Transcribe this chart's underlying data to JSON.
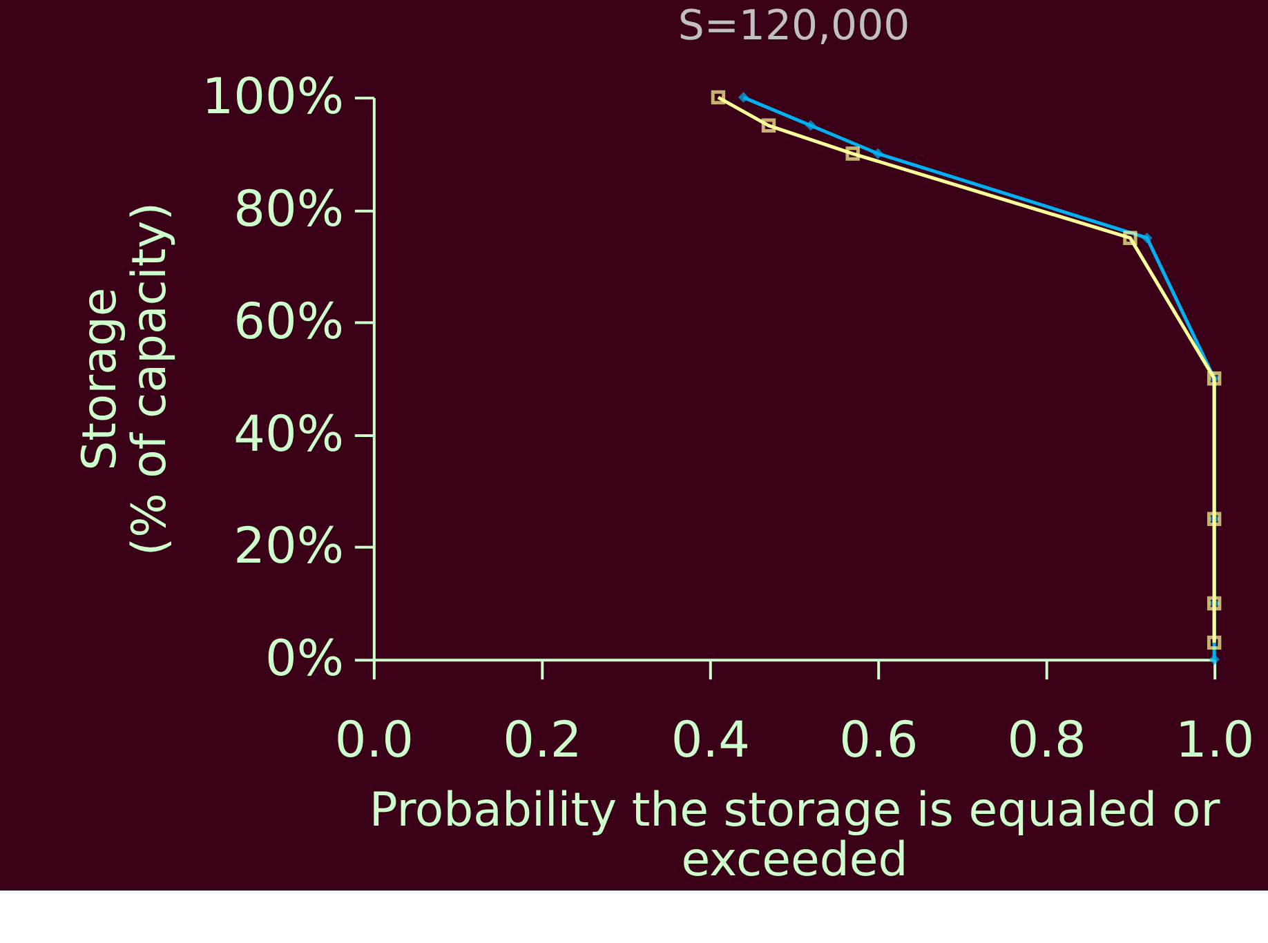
{
  "chart_data": {
    "type": "line",
    "title": "S=120,000",
    "xlabel": "Probability the storage is equaled or\nexceeded",
    "ylabel": "Storage\n(% of capacity)",
    "xlim": [
      0,
      1
    ],
    "ylim": [
      0,
      100
    ],
    "xticks": [
      {
        "value": 0,
        "label": "0.0"
      },
      {
        "value": 0.2,
        "label": "0.2"
      },
      {
        "value": 0.4,
        "label": "0.4"
      },
      {
        "value": 0.6,
        "label": "0.6"
      },
      {
        "value": 0.8,
        "label": "0.8"
      },
      {
        "value": 1,
        "label": "1.0"
      }
    ],
    "yticks": [
      {
        "value": 0,
        "label": "0%"
      },
      {
        "value": 20,
        "label": "20%"
      },
      {
        "value": 40,
        "label": "40%"
      },
      {
        "value": 60,
        "label": "60%"
      },
      {
        "value": 80,
        "label": "80%"
      },
      {
        "value": 100,
        "label": "100%"
      }
    ],
    "grid": false,
    "series": [
      {
        "color": "#00b0f0",
        "marker": "diamond",
        "x": [
          0.44,
          0.52,
          0.6,
          0.92,
          1,
          1,
          1,
          1
        ],
        "values": [
          100,
          95,
          90,
          75,
          50,
          25,
          10,
          0
        ]
      },
      {
        "color": "#ffff99",
        "marker": "square",
        "x": [
          0.41,
          0.47,
          0.57,
          0.9,
          1,
          1,
          1,
          1
        ],
        "values": [
          100,
          95,
          90,
          75,
          50,
          25,
          10,
          3
        ]
      }
    ]
  }
}
